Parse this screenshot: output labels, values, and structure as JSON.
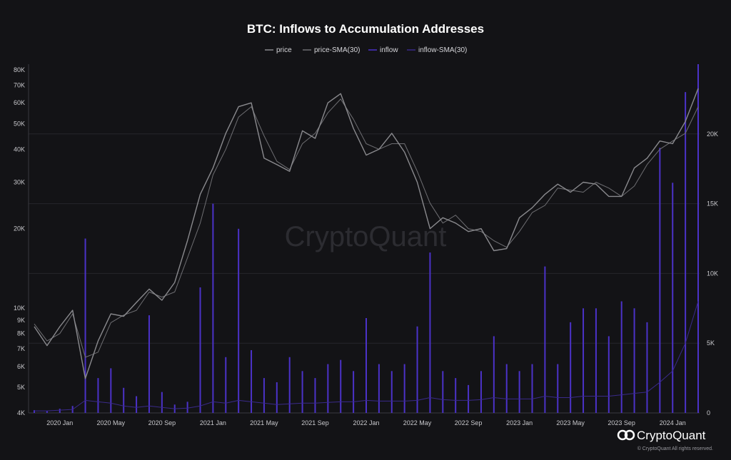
{
  "chart_data": {
    "type": "line",
    "title": "BTC: Inflows to Accumulation Addresses",
    "watermark": "CryptoQuant",
    "brand": {
      "name": "CryptoQuant",
      "copyright": "© CryptoQuant All rights reserved."
    },
    "x_ticks": [
      "2020 Jan",
      "2020 May",
      "2020 Sep",
      "2021 Jan",
      "2021 May",
      "2021 Sep",
      "2022 Jan",
      "2022 May",
      "2022 Sep",
      "2023 Jan",
      "2023 May",
      "2023 Sep",
      "2024 Jan"
    ],
    "x_range": [
      "2019-11",
      "2024-03"
    ],
    "y_left": {
      "scale": "log",
      "range": [
        4000,
        80000
      ],
      "ticks": [
        {
          "value": 80000,
          "label": "80K"
        },
        {
          "value": 70000,
          "label": "70K"
        },
        {
          "value": 60000,
          "label": "60K"
        },
        {
          "value": 50000,
          "label": "50K"
        },
        {
          "value": 40000,
          "label": "40K"
        },
        {
          "value": 30000,
          "label": "30K"
        },
        {
          "value": 20000,
          "label": "20K"
        },
        {
          "value": 10000,
          "label": "10K"
        },
        {
          "value": 9000,
          "label": "9K"
        },
        {
          "value": 8000,
          "label": "8K"
        },
        {
          "value": 7000,
          "label": "7K"
        },
        {
          "value": 6000,
          "label": "6K"
        },
        {
          "value": 5000,
          "label": "5K"
        },
        {
          "value": 4000,
          "label": "4K"
        }
      ]
    },
    "y_right": {
      "scale": "linear",
      "range": [
        0,
        25000
      ],
      "ticks": [
        {
          "value": 20000,
          "label": "20K"
        },
        {
          "value": 15000,
          "label": "15K"
        },
        {
          "value": 10000,
          "label": "10K"
        },
        {
          "value": 5000,
          "label": "5K"
        },
        {
          "value": 0,
          "label": "0"
        }
      ]
    },
    "grid": true,
    "legend_position": "top-center",
    "colors": {
      "price": "#8a8a8e",
      "price_sma": "#6e6e72",
      "inflow": "#4b32c8",
      "inflow_sma": "#3a2a8a",
      "grid": "#26262b",
      "background": "#131316"
    },
    "series": [
      {
        "name": "price",
        "axis": "left",
        "points": [
          [
            "2019-11",
            8500
          ],
          [
            "2019-12",
            7200
          ],
          [
            "2020-01",
            8500
          ],
          [
            "2020-02",
            9800
          ],
          [
            "2020-03",
            5400
          ],
          [
            "2020-04",
            7500
          ],
          [
            "2020-05",
            9500
          ],
          [
            "2020-06",
            9300
          ],
          [
            "2020-07",
            10500
          ],
          [
            "2020-08",
            11800
          ],
          [
            "2020-09",
            10700
          ],
          [
            "2020-10",
            12500
          ],
          [
            "2020-11",
            18000
          ],
          [
            "2020-12",
            27000
          ],
          [
            "2021-01",
            34000
          ],
          [
            "2021-02",
            46000
          ],
          [
            "2021-03",
            58000
          ],
          [
            "2021-04",
            60000
          ],
          [
            "2021-05",
            37000
          ],
          [
            "2021-06",
            35000
          ],
          [
            "2021-07",
            33000
          ],
          [
            "2021-08",
            47000
          ],
          [
            "2021-09",
            44000
          ],
          [
            "2021-10",
            60000
          ],
          [
            "2021-11",
            65000
          ],
          [
            "2021-12",
            48000
          ],
          [
            "2022-01",
            38000
          ],
          [
            "2022-02",
            40000
          ],
          [
            "2022-03",
            46000
          ],
          [
            "2022-04",
            39000
          ],
          [
            "2022-05",
            30000
          ],
          [
            "2022-06",
            20000
          ],
          [
            "2022-07",
            22000
          ],
          [
            "2022-08",
            21000
          ],
          [
            "2022-09",
            19500
          ],
          [
            "2022-10",
            20000
          ],
          [
            "2022-11",
            16500
          ],
          [
            "2022-12",
            16800
          ],
          [
            "2023-01",
            22000
          ],
          [
            "2023-02",
            24000
          ],
          [
            "2023-03",
            27000
          ],
          [
            "2023-04",
            29500
          ],
          [
            "2023-05",
            27500
          ],
          [
            "2023-06",
            30000
          ],
          [
            "2023-07",
            29500
          ],
          [
            "2023-08",
            26500
          ],
          [
            "2023-09",
            26500
          ],
          [
            "2023-10",
            34000
          ],
          [
            "2023-11",
            37000
          ],
          [
            "2023-12",
            43000
          ],
          [
            "2024-01",
            42000
          ],
          [
            "2024-02",
            51000
          ],
          [
            "2024-03",
            68000
          ]
        ]
      },
      {
        "name": "price-SMA(30)",
        "axis": "left",
        "points": [
          [
            "2019-11",
            8700
          ],
          [
            "2019-12",
            7500
          ],
          [
            "2020-01",
            8000
          ],
          [
            "2020-02",
            9500
          ],
          [
            "2020-03",
            6500
          ],
          [
            "2020-04",
            6800
          ],
          [
            "2020-05",
            8800
          ],
          [
            "2020-06",
            9400
          ],
          [
            "2020-07",
            9800
          ],
          [
            "2020-08",
            11500
          ],
          [
            "2020-09",
            11000
          ],
          [
            "2020-10",
            11500
          ],
          [
            "2020-11",
            15500
          ],
          [
            "2020-12",
            21000
          ],
          [
            "2021-01",
            32000
          ],
          [
            "2021-02",
            40000
          ],
          [
            "2021-03",
            53000
          ],
          [
            "2021-04",
            58000
          ],
          [
            "2021-05",
            45000
          ],
          [
            "2021-06",
            36000
          ],
          [
            "2021-07",
            33500
          ],
          [
            "2021-08",
            42000
          ],
          [
            "2021-09",
            46000
          ],
          [
            "2021-10",
            55000
          ],
          [
            "2021-11",
            62000
          ],
          [
            "2021-12",
            52000
          ],
          [
            "2022-01",
            42000
          ],
          [
            "2022-02",
            40000
          ],
          [
            "2022-03",
            42000
          ],
          [
            "2022-04",
            42000
          ],
          [
            "2022-05",
            33000
          ],
          [
            "2022-06",
            25000
          ],
          [
            "2022-07",
            21000
          ],
          [
            "2022-08",
            22500
          ],
          [
            "2022-09",
            20000
          ],
          [
            "2022-10",
            19500
          ],
          [
            "2022-11",
            18000
          ],
          [
            "2022-12",
            17000
          ],
          [
            "2023-01",
            19500
          ],
          [
            "2023-02",
            23000
          ],
          [
            "2023-03",
            24500
          ],
          [
            "2023-04",
            28500
          ],
          [
            "2023-05",
            28000
          ],
          [
            "2023-06",
            27500
          ],
          [
            "2023-07",
            30000
          ],
          [
            "2023-08",
            28500
          ],
          [
            "2023-09",
            26500
          ],
          [
            "2023-10",
            29000
          ],
          [
            "2023-11",
            35000
          ],
          [
            "2023-12",
            40000
          ],
          [
            "2024-01",
            43000
          ],
          [
            "2024-02",
            46000
          ],
          [
            "2024-03",
            58000
          ]
        ]
      },
      {
        "name": "inflow",
        "axis": "right",
        "points": [
          [
            "2019-11",
            200
          ],
          [
            "2019-12",
            150
          ],
          [
            "2020-01",
            300
          ],
          [
            "2020-02",
            500
          ],
          [
            "2020-03",
            12500
          ],
          [
            "2020-04",
            2500
          ],
          [
            "2020-05",
            3200
          ],
          [
            "2020-06",
            1800
          ],
          [
            "2020-07",
            1200
          ],
          [
            "2020-08",
            7000
          ],
          [
            "2020-09",
            1500
          ],
          [
            "2020-10",
            600
          ],
          [
            "2020-11",
            800
          ],
          [
            "2020-12",
            9000
          ],
          [
            "2021-01",
            15000
          ],
          [
            "2021-02",
            4000
          ],
          [
            "2021-03",
            13200
          ],
          [
            "2021-04",
            4500
          ],
          [
            "2021-05",
            2500
          ],
          [
            "2021-06",
            2200
          ],
          [
            "2021-07",
            4000
          ],
          [
            "2021-08",
            3000
          ],
          [
            "2021-09",
            2500
          ],
          [
            "2021-10",
            3500
          ],
          [
            "2021-11",
            3800
          ],
          [
            "2021-12",
            3000
          ],
          [
            "2022-01",
            6800
          ],
          [
            "2022-02",
            3500
          ],
          [
            "2022-03",
            3000
          ],
          [
            "2022-04",
            3500
          ],
          [
            "2022-05",
            6200
          ],
          [
            "2022-06",
            11500
          ],
          [
            "2022-07",
            3000
          ],
          [
            "2022-08",
            2500
          ],
          [
            "2022-09",
            2000
          ],
          [
            "2022-10",
            3000
          ],
          [
            "2022-11",
            5500
          ],
          [
            "2022-12",
            3500
          ],
          [
            "2023-01",
            3000
          ],
          [
            "2023-02",
            3500
          ],
          [
            "2023-03",
            10500
          ],
          [
            "2023-04",
            3500
          ],
          [
            "2023-05",
            6500
          ],
          [
            "2023-06",
            7500
          ],
          [
            "2023-07",
            7500
          ],
          [
            "2023-08",
            5500
          ],
          [
            "2023-09",
            8000
          ],
          [
            "2023-10",
            7500
          ],
          [
            "2023-11",
            6500
          ],
          [
            "2023-12",
            19000
          ],
          [
            "2024-01",
            16500
          ],
          [
            "2024-02",
            23000
          ],
          [
            "2024-03",
            25000
          ]
        ]
      },
      {
        "name": "inflow-SMA(30)",
        "axis": "right",
        "points": [
          [
            "2019-11",
            150
          ],
          [
            "2019-12",
            150
          ],
          [
            "2020-01",
            200
          ],
          [
            "2020-02",
            250
          ],
          [
            "2020-03",
            900
          ],
          [
            "2020-04",
            800
          ],
          [
            "2020-05",
            700
          ],
          [
            "2020-06",
            500
          ],
          [
            "2020-07",
            400
          ],
          [
            "2020-08",
            500
          ],
          [
            "2020-09",
            400
          ],
          [
            "2020-10",
            300
          ],
          [
            "2020-11",
            350
          ],
          [
            "2020-12",
            500
          ],
          [
            "2021-01",
            800
          ],
          [
            "2021-02",
            700
          ],
          [
            "2021-03",
            900
          ],
          [
            "2021-04",
            800
          ],
          [
            "2021-05",
            700
          ],
          [
            "2021-06",
            600
          ],
          [
            "2021-07",
            650
          ],
          [
            "2021-08",
            700
          ],
          [
            "2021-09",
            700
          ],
          [
            "2021-10",
            750
          ],
          [
            "2021-11",
            800
          ],
          [
            "2021-12",
            800
          ],
          [
            "2022-01",
            900
          ],
          [
            "2022-02",
            850
          ],
          [
            "2022-03",
            850
          ],
          [
            "2022-04",
            850
          ],
          [
            "2022-05",
            900
          ],
          [
            "2022-06",
            1100
          ],
          [
            "2022-07",
            950
          ],
          [
            "2022-08",
            900
          ],
          [
            "2022-09",
            900
          ],
          [
            "2022-10",
            950
          ],
          [
            "2022-11",
            1100
          ],
          [
            "2022-12",
            1000
          ],
          [
            "2023-01",
            1000
          ],
          [
            "2023-02",
            1000
          ],
          [
            "2023-03",
            1200
          ],
          [
            "2023-04",
            1100
          ],
          [
            "2023-05",
            1100
          ],
          [
            "2023-06",
            1200
          ],
          [
            "2023-07",
            1200
          ],
          [
            "2023-08",
            1200
          ],
          [
            "2023-09",
            1300
          ],
          [
            "2023-10",
            1400
          ],
          [
            "2023-11",
            1500
          ],
          [
            "2023-12",
            2200
          ],
          [
            "2024-01",
            3000
          ],
          [
            "2024-02",
            5000
          ],
          [
            "2024-03",
            8000
          ]
        ]
      }
    ]
  }
}
